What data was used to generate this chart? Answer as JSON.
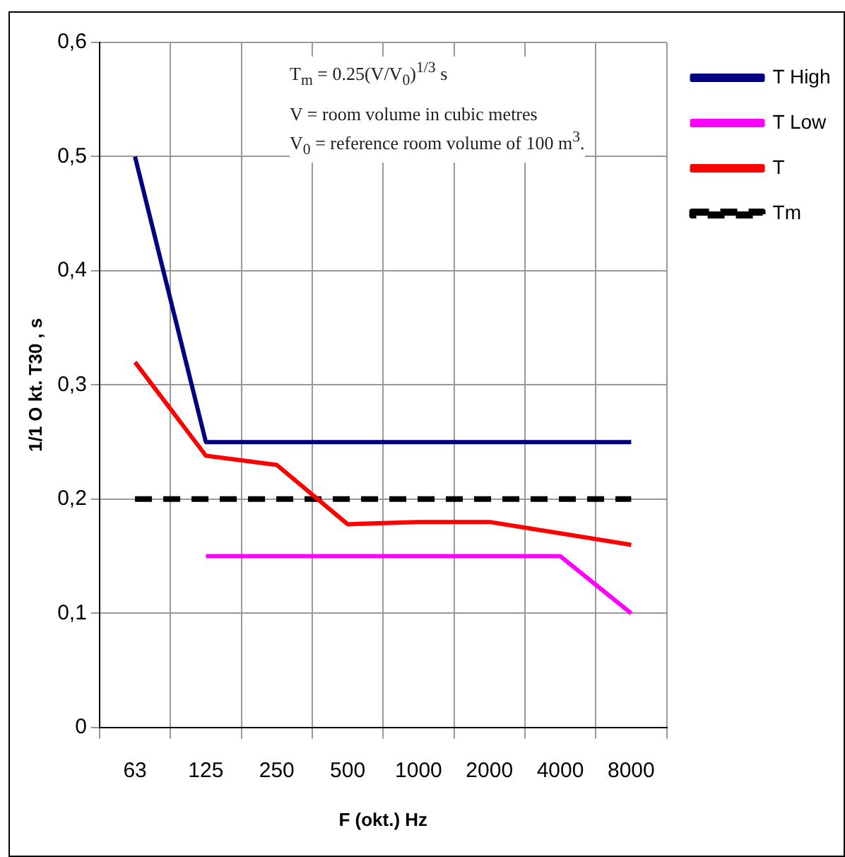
{
  "chart_data": {
    "type": "line",
    "xlabel": "F (okt.) Hz",
    "ylabel": "1/1 O kt. T30 , s",
    "categories": [
      "63",
      "125",
      "250",
      "500",
      "1000",
      "2000",
      "4000",
      "8000"
    ],
    "series": [
      {
        "name": "T High",
        "color": "#000080",
        "values": [
          0.5,
          0.25,
          0.25,
          0.25,
          0.25,
          0.25,
          0.25,
          0.25
        ]
      },
      {
        "name": "T Low",
        "color": "#ff00ff",
        "values": [
          null,
          0.15,
          0.15,
          0.15,
          0.15,
          0.15,
          0.15,
          0.1
        ]
      },
      {
        "name": "T",
        "color": "#ff0000",
        "values": [
          0.32,
          0.238,
          0.23,
          0.178,
          0.18,
          0.18,
          0.17,
          0.16
        ]
      },
      {
        "name": "Tm",
        "color": "#000000",
        "line_style": "dashed",
        "values": [
          0.2,
          0.2,
          0.2,
          0.2,
          0.2,
          0.2,
          0.2,
          0.2
        ]
      }
    ],
    "ylim": [
      0,
      0.6
    ],
    "yticks": [
      0,
      {
        "value": 0.1,
        "label": "0,1"
      },
      {
        "value": 0.2,
        "label": "0,2"
      },
      {
        "value": 0.3,
        "label": "0,3"
      },
      {
        "value": 0.4,
        "label": "0,4"
      },
      {
        "value": 0.5,
        "label": "0,5"
      },
      {
        "value": 0.6,
        "label": "0,6"
      }
    ],
    "grid": true,
    "legend": "top right",
    "marker": "none",
    "annotations": [
      "T$_{m}$ = 0.25(V/V$_{0}$)$^{1/3}$ s",
      "V = room volume in cubic metres",
      "V$_{0}$ = reference room volume of 100 m$^{3}$."
    ]
  }
}
